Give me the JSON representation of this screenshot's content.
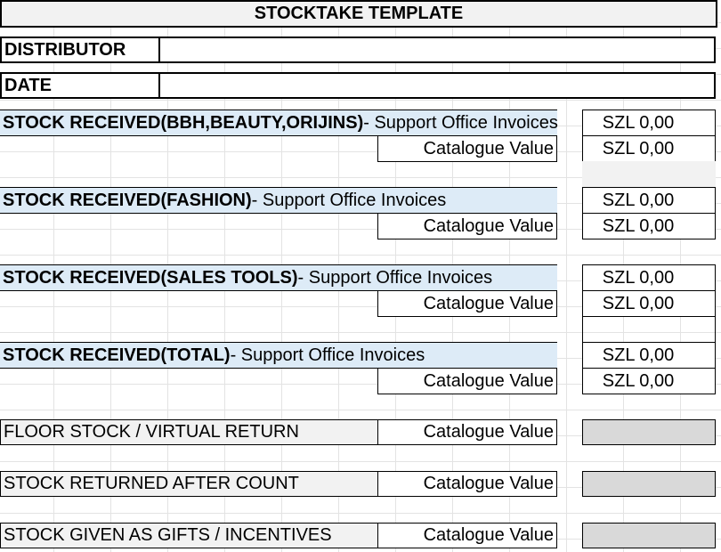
{
  "title": "STOCKTAKE TEMPLATE",
  "header_fields": [
    {
      "label": "DISTRIBUTOR",
      "value": ""
    },
    {
      "label": "DATE",
      "value": ""
    }
  ],
  "sections": [
    {
      "bold": "STOCK RECEIVED(BBH,BEAUTY,ORIJINS)",
      "rest": " - Support Office Invoices",
      "invoice_value": "SZL 0,00",
      "catalogue_label": "Catalogue Value",
      "catalogue_value": "SZL 0,00"
    },
    {
      "bold": "STOCK RECEIVED(FASHION)",
      "rest": " - Support Office Invoices",
      "invoice_value": "SZL 0,00",
      "catalogue_label": "Catalogue Value",
      "catalogue_value": "SZL 0,00"
    },
    {
      "bold": "STOCK RECEIVED(SALES TOOLS)",
      "rest": " - Support Office Invoices",
      "invoice_value": "SZL 0,00",
      "catalogue_label": "Catalogue Value",
      "catalogue_value": "SZL 0,00"
    },
    {
      "bold": "STOCK RECEIVED(TOTAL)",
      "rest": " - Support Office Invoices",
      "invoice_value": "SZL 0,00",
      "catalogue_label": "Catalogue Value",
      "catalogue_value": "SZL 0,00"
    }
  ],
  "other_rows": [
    {
      "label": "FLOOR STOCK / VIRTUAL RETURN",
      "catalogue_label": "Catalogue Value"
    },
    {
      "label": "STOCK RETURNED AFTER COUNT",
      "catalogue_label": "Catalogue Value"
    },
    {
      "label": "STOCK GIVEN AS GIFTS / INCENTIVES",
      "catalogue_label": "Catalogue Value"
    }
  ]
}
